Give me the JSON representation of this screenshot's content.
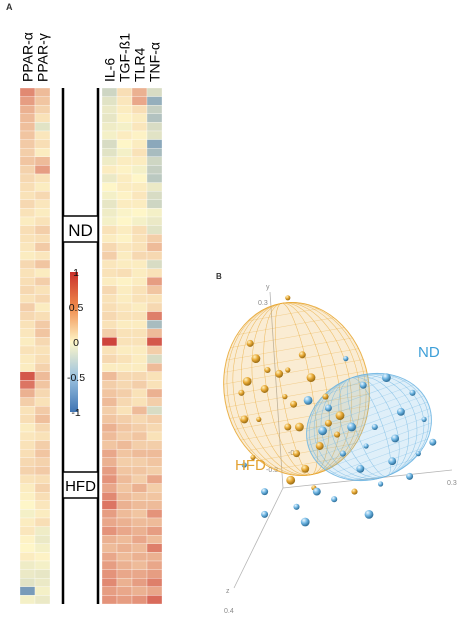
{
  "panels": {
    "a_label": "A",
    "b_label": "B"
  },
  "colors": {
    "high": "#c9302c",
    "mid": "#fef6c8",
    "low": "#3f74b3",
    "hfd_ellipse": "#e8a935",
    "nd_ellipse": "#6fb6e3",
    "hfd_text": "#e3a233",
    "nd_text": "#3d9fd8",
    "axis": "#a9a9a9"
  },
  "chart_data": [
    {
      "type": "heatmap",
      "title": "",
      "columns_left": [
        "PPAR-α",
        "PPAR-γ"
      ],
      "columns_right": [
        "IL-6",
        "TGF-ß1",
        "TLR4",
        "TNF-α"
      ],
      "group_labels": [
        "ND",
        "HFD"
      ],
      "rows": 60,
      "colorbar": {
        "range": [
          -1,
          1
        ],
        "tick_labels": [
          "1",
          "0.5",
          "0",
          "-0.5",
          "-1"
        ],
        "tick_values": [
          1,
          0.5,
          0,
          -0.5,
          -1
        ]
      },
      "values_left": [
        [
          0.55,
          0.3
        ],
        [
          0.45,
          0.25
        ],
        [
          0.35,
          0.18
        ],
        [
          0.3,
          0.1
        ],
        [
          0.28,
          -0.15
        ],
        [
          0.25,
          0.08
        ],
        [
          0.22,
          0.12
        ],
        [
          0.2,
          0.05
        ],
        [
          0.25,
          0.3
        ],
        [
          0.18,
          0.45
        ],
        [
          0.15,
          0.1
        ],
        [
          0.12,
          0.05
        ],
        [
          0.1,
          0.15
        ],
        [
          0.15,
          0.08
        ],
        [
          0.1,
          0.05
        ],
        [
          0.05,
          0.1
        ],
        [
          0.12,
          0.2
        ],
        [
          0.1,
          0.12
        ],
        [
          0.08,
          0.22
        ],
        [
          0.05,
          0.08
        ],
        [
          0.15,
          0.25
        ],
        [
          0.1,
          0.05
        ],
        [
          0.12,
          0.2
        ],
        [
          0.15,
          0.1
        ],
        [
          0.1,
          0.15
        ],
        [
          0.2,
          0.05
        ],
        [
          0.15,
          0.12
        ],
        [
          0.1,
          0.22
        ],
        [
          0.08,
          0.25
        ],
        [
          0.05,
          0.15
        ],
        [
          0.1,
          0.1
        ],
        [
          0.06,
          0.12
        ],
        [
          0.05,
          0.18
        ],
        [
          0.8,
          0.3
        ],
        [
          0.65,
          0.25
        ],
        [
          0.35,
          0.15
        ],
        [
          0.2,
          0.1
        ],
        [
          0.1,
          0.22
        ],
        [
          0.12,
          0.28
        ],
        [
          0.05,
          0.15
        ],
        [
          0.08,
          0.1
        ],
        [
          0.1,
          0.2
        ],
        [
          0.12,
          0.25
        ],
        [
          0.15,
          0.18
        ],
        [
          0.18,
          0.22
        ],
        [
          0.1,
          0.12
        ],
        [
          0.05,
          0.18
        ],
        [
          0.03,
          0.12
        ],
        [
          0.0,
          0.08
        ],
        [
          -0.05,
          0.05
        ],
        [
          0.05,
          0.12
        ],
        [
          0.08,
          -0.08
        ],
        [
          0.02,
          -0.1
        ],
        [
          0.0,
          -0.05
        ],
        [
          0.05,
          0.02
        ],
        [
          -0.08,
          -0.05
        ],
        [
          -0.1,
          -0.12
        ],
        [
          -0.15,
          -0.1
        ],
        [
          -0.7,
          -0.05
        ],
        [
          -0.05,
          -0.1
        ]
      ],
      "values_right": [
        [
          -0.25,
          0.12,
          0.35,
          -0.2
        ],
        [
          -0.15,
          0.08,
          0.4,
          -0.55
        ],
        [
          -0.1,
          0.05,
          0.12,
          -0.3
        ],
        [
          -0.12,
          0.02,
          0.05,
          -0.4
        ],
        [
          -0.08,
          -0.05,
          0.08,
          -0.2
        ],
        [
          -0.05,
          0.05,
          0.02,
          -0.15
        ],
        [
          -0.2,
          0.0,
          0.05,
          -0.6
        ],
        [
          -0.15,
          -0.05,
          0.1,
          -0.45
        ],
        [
          -0.08,
          0.05,
          0.05,
          -0.25
        ],
        [
          0.05,
          0.02,
          -0.05,
          -0.3
        ],
        [
          -0.1,
          0.05,
          0.0,
          -0.35
        ],
        [
          0.0,
          0.05,
          0.05,
          -0.1
        ],
        [
          -0.05,
          0.02,
          0.08,
          -0.2
        ],
        [
          -0.12,
          0.05,
          0.05,
          -0.25
        ],
        [
          -0.08,
          -0.02,
          0.0,
          -0.05
        ],
        [
          -0.05,
          0.0,
          -0.05,
          -0.1
        ],
        [
          0.1,
          0.05,
          0.12,
          -0.15
        ],
        [
          0.05,
          0.02,
          0.1,
          0.2
        ],
        [
          0.15,
          0.08,
          0.1,
          0.3
        ],
        [
          0.2,
          0.05,
          0.15,
          0.15
        ],
        [
          0.08,
          0.05,
          0.05,
          -0.2
        ],
        [
          0.1,
          0.12,
          0.05,
          0.1
        ],
        [
          0.05,
          0.02,
          0.05,
          0.45
        ],
        [
          0.15,
          0.05,
          0.1,
          0.25
        ],
        [
          0.1,
          0.05,
          0.1,
          0.1
        ],
        [
          0.12,
          0.08,
          0.05,
          0.15
        ],
        [
          0.15,
          0.1,
          0.1,
          0.6
        ],
        [
          0.1,
          0.05,
          0.05,
          -0.45
        ],
        [
          0.2,
          0.1,
          0.1,
          0.3
        ],
        [
          0.9,
          0.1,
          0.1,
          0.8
        ],
        [
          0.1,
          0.05,
          0.05,
          0.2
        ],
        [
          0.15,
          0.1,
          0.05,
          -0.2
        ],
        [
          0.05,
          0.05,
          0.05,
          0.3
        ],
        [
          0.3,
          0.15,
          0.15,
          0.1
        ],
        [
          0.2,
          0.15,
          0.2,
          0.1
        ],
        [
          0.25,
          0.2,
          0.1,
          0.35
        ],
        [
          0.3,
          0.15,
          0.1,
          0.2
        ],
        [
          0.2,
          0.1,
          0.3,
          -0.2
        ],
        [
          0.25,
          0.2,
          0.15,
          0.2
        ],
        [
          0.35,
          0.25,
          0.2,
          0.15
        ],
        [
          0.3,
          0.2,
          0.25,
          0.1
        ],
        [
          0.25,
          0.3,
          0.2,
          0.2
        ],
        [
          0.4,
          0.25,
          0.3,
          0.3
        ],
        [
          0.35,
          0.2,
          0.2,
          0.25
        ],
        [
          0.45,
          0.25,
          0.25,
          0.2
        ],
        [
          0.5,
          0.3,
          0.2,
          0.4
        ],
        [
          0.4,
          0.25,
          0.35,
          0.2
        ],
        [
          0.55,
          0.3,
          0.25,
          0.25
        ],
        [
          0.65,
          0.35,
          0.3,
          0.3
        ],
        [
          0.45,
          0.3,
          0.25,
          0.5
        ],
        [
          0.4,
          0.35,
          0.3,
          0.3
        ],
        [
          0.5,
          0.4,
          0.35,
          0.45
        ],
        [
          0.35,
          0.3,
          0.4,
          0.3
        ],
        [
          0.3,
          0.35,
          0.3,
          0.6
        ],
        [
          0.4,
          0.3,
          0.35,
          0.35
        ],
        [
          0.45,
          0.35,
          0.3,
          0.4
        ],
        [
          0.5,
          0.4,
          0.4,
          0.45
        ],
        [
          0.55,
          0.35,
          0.45,
          0.6
        ],
        [
          0.45,
          0.4,
          0.35,
          0.4
        ],
        [
          0.5,
          0.45,
          0.5,
          0.7
        ]
      ]
    },
    {
      "type": "scatter",
      "title": "",
      "axes": [
        "x",
        "y",
        "z"
      ],
      "axis_tick_labels": {
        "y_top": "0.3",
        "y_mid": "-0.1",
        "x_end": "0.3",
        "origin": "-0.3",
        "z_label": "z",
        "z_end": "0.4"
      },
      "series": [
        {
          "name": "HFD",
          "ellipse": {
            "cx": 0.05,
            "cy": 0.05,
            "rx": 0.25,
            "ry": 0.3,
            "rotation": -10
          },
          "points": [
            [
              0.02,
              0.29
            ],
            [
              -0.11,
              0.17
            ],
            [
              -0.09,
              0.13
            ],
            [
              -0.05,
              0.1
            ],
            [
              -0.01,
              0.09
            ],
            [
              0.02,
              0.1
            ],
            [
              0.07,
              0.14
            ],
            [
              -0.12,
              0.07
            ],
            [
              -0.14,
              0.04
            ],
            [
              -0.06,
              0.05
            ],
            [
              0.01,
              0.03
            ],
            [
              0.04,
              0.01
            ],
            [
              0.1,
              0.08
            ],
            [
              0.15,
              0.03
            ],
            [
              -0.13,
              -0.03
            ],
            [
              -0.08,
              -0.03
            ],
            [
              0.02,
              -0.05
            ],
            [
              0.06,
              -0.05
            ],
            [
              0.19,
              -0.07
            ],
            [
              0.13,
              -0.1
            ],
            [
              -0.1,
              -0.13
            ],
            [
              0.05,
              -0.12
            ],
            [
              0.03,
              -0.19
            ],
            [
              0.25,
              -0.22
            ],
            [
              0.08,
              -0.16
            ],
            [
              0.11,
              -0.21
            ],
            [
              0.16,
              -0.04
            ],
            [
              0.2,
              -0.02
            ]
          ]
        },
        {
          "name": "ND",
          "ellipse": {
            "cx": 0.3,
            "cy": -0.05,
            "rx": 0.22,
            "ry": 0.18,
            "rotation": -20
          },
          "points": [
            [
              0.22,
              0.13
            ],
            [
              0.28,
              0.06
            ],
            [
              0.36,
              0.08
            ],
            [
              0.45,
              0.04
            ],
            [
              0.41,
              -0.01
            ],
            [
              0.49,
              -0.03
            ],
            [
              0.16,
              0.0
            ],
            [
              0.24,
              -0.05
            ],
            [
              0.32,
              -0.05
            ],
            [
              0.39,
              -0.08
            ],
            [
              0.47,
              -0.12
            ],
            [
              0.52,
              -0.09
            ],
            [
              0.09,
              0.02
            ],
            [
              0.21,
              -0.12
            ],
            [
              0.27,
              -0.16
            ],
            [
              0.34,
              -0.2
            ],
            [
              0.44,
              -0.18
            ],
            [
              0.3,
              -0.28
            ],
            [
              0.18,
              -0.24
            ],
            [
              0.12,
              -0.22
            ],
            [
              -0.13,
              -0.15
            ],
            [
              -0.06,
              -0.28
            ],
            [
              0.08,
              -0.3
            ],
            [
              0.05,
              -0.26
            ],
            [
              0.38,
              -0.14
            ],
            [
              0.29,
              -0.1
            ],
            [
              -0.06,
              -0.22
            ],
            [
              0.14,
              -0.06
            ]
          ]
        }
      ]
    }
  ]
}
